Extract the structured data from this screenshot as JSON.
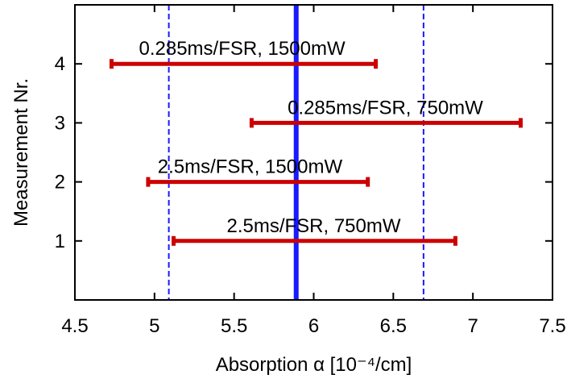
{
  "chart_data": {
    "type": "scatter",
    "subtype": "horizontal-error-bars",
    "xlabel": "Absorption α [10⁻⁴/cm]",
    "ylabel": "Measurement Nr.",
    "xlim": [
      4.5,
      7.5
    ],
    "ylim": [
      0,
      5
    ],
    "x_ticks": [
      "4.5",
      "5",
      "5.5",
      "6",
      "6.5",
      "7",
      "7.5"
    ],
    "y_ticks": [
      "1",
      "2",
      "3",
      "4"
    ],
    "grid": false,
    "measurements": [
      {
        "label": "2.5ms/FSR, 750mW",
        "y": 1,
        "x_low": 5.12,
        "x_high": 6.89,
        "label_x_center": 6.0
      },
      {
        "label": "2.5ms/FSR, 1500mW",
        "y": 2,
        "x_low": 4.96,
        "x_high": 6.34,
        "label_x_center": 5.6
      },
      {
        "label": "0.285ms/FSR, 750mW",
        "y": 3,
        "x_low": 5.61,
        "x_high": 7.3,
        "label_x_center": 6.45
      },
      {
        "label": "0.285ms/FSR, 1500mW",
        "y": 4,
        "x_low": 4.73,
        "x_high": 6.39,
        "label_x_center": 5.55
      }
    ],
    "reference_lines": [
      {
        "kind": "mean",
        "x": 5.89,
        "style": "solid"
      },
      {
        "kind": "lower-bound",
        "x": 5.09,
        "style": "dashed"
      },
      {
        "kind": "upper-bound",
        "x": 6.69,
        "style": "dashed"
      }
    ],
    "colors": {
      "error_bars": "#cc0000",
      "reference_lines": "#1a1aff",
      "axes": "#000000"
    }
  }
}
